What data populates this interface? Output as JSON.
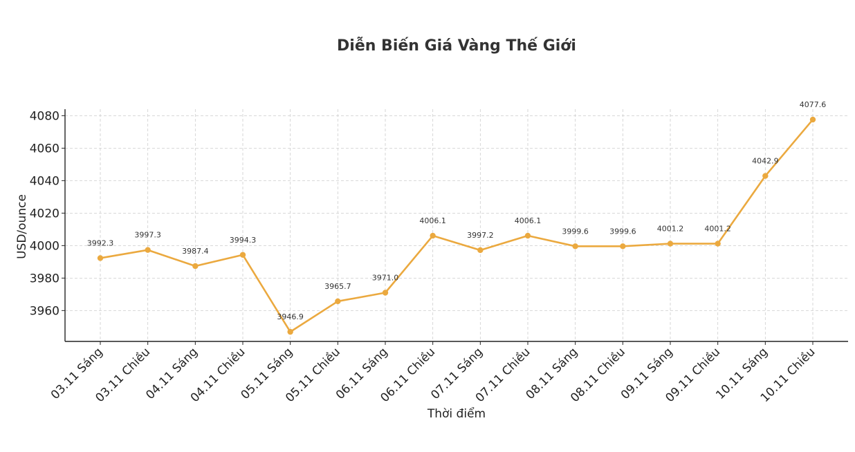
{
  "chart_data": {
    "type": "line",
    "title": "Diễn Biến Giá Vàng Thế Giới",
    "xlabel": "Thời điểm",
    "ylabel": "USD/ounce",
    "categories": [
      "03.11 Sáng",
      "03.11 Chiều",
      "04.11 Sáng",
      "04.11 Chiều",
      "05.11 Sáng",
      "05.11 Chiều",
      "06.11 Sáng",
      "06.11 Chiều",
      "07.11 Sáng",
      "07.11 Chiều",
      "08.11 Sáng",
      "08.11 Chiều",
      "09.11 Sáng",
      "09.11 Chiều",
      "10.11 Sáng",
      "10.11 Chiều"
    ],
    "values": [
      3992.3,
      3997.3,
      3987.4,
      3994.3,
      3946.9,
      3965.7,
      3971.0,
      4006.1,
      3997.2,
      4006.1,
      3999.6,
      3999.6,
      4001.2,
      4001.2,
      4042.9,
      4077.6
    ],
    "data_labels": [
      "3992.3",
      "3997.3",
      "3987.4",
      "3994.3",
      "3946.9",
      "3965.7",
      "3971.0",
      "4006.1",
      "3997.2",
      "4006.1",
      "3999.6",
      "3999.6",
      "4001.2",
      "4001.2",
      "4042.9",
      "4077.6"
    ],
    "yticks": [
      3960,
      3980,
      4000,
      4020,
      4040,
      4060,
      4080
    ],
    "ytick_labels": [
      "3960",
      "3980",
      "4000",
      "4020",
      "4040",
      "4060",
      "4080"
    ],
    "ylim": [
      3941,
      4084
    ],
    "grid": true,
    "color": "#EBA93F"
  }
}
